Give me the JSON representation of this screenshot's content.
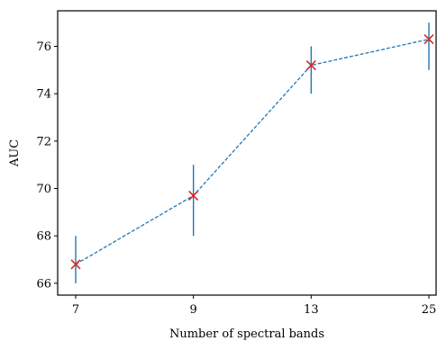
{
  "chart_data": {
    "type": "line",
    "x_categories": [
      "7",
      "9",
      "13",
      "25"
    ],
    "xlabel": "Number of spectral bands",
    "ylabel": "AUC",
    "ylim": [
      65.5,
      77.5
    ],
    "yticks": [
      66,
      68,
      70,
      72,
      74,
      76
    ],
    "grid": false,
    "series": [
      {
        "values": [
          66.8,
          69.7,
          75.2,
          76.3
        ],
        "error_low": [
          66.0,
          68.0,
          74.0,
          75.0
        ],
        "error_high": [
          68.0,
          71.0,
          76.0,
          77.0
        ],
        "line_color": "#1f77b4",
        "line_style": "dashed",
        "marker": "x",
        "marker_color": "#d62728"
      }
    ]
  }
}
